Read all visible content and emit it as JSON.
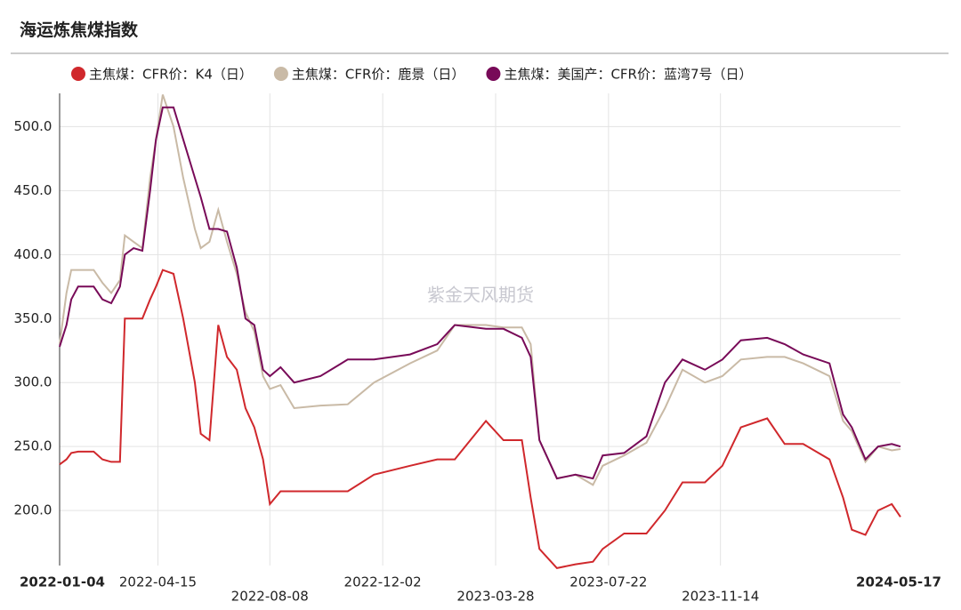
{
  "chart_data": {
    "type": "line",
    "title": "海运炼焦煤指数",
    "watermark": "紫金天风期货",
    "x": [
      "2022-01-04",
      "2022-01-11",
      "2022-01-16",
      "2022-01-23",
      "2022-02-08",
      "2022-02-17",
      "2022-02-26",
      "2022-03-07",
      "2022-03-12",
      "2022-03-21",
      "2022-03-30",
      "2022-04-07",
      "2022-04-13",
      "2022-04-20",
      "2022-05-01",
      "2022-05-11",
      "2022-05-23",
      "2022-05-29",
      "2022-06-07",
      "2022-06-16",
      "2022-06-25",
      "2022-07-05",
      "2022-07-14",
      "2022-07-23",
      "2022-08-01",
      "2022-08-08",
      "2022-08-19",
      "2022-09-02",
      "2022-09-29",
      "2022-10-27",
      "2022-11-23",
      "2022-12-30",
      "2023-01-27",
      "2023-02-14",
      "2023-03-18",
      "2023-04-05",
      "2023-04-24",
      "2023-05-03",
      "2023-05-12",
      "2023-05-30",
      "2023-06-18",
      "2023-07-06",
      "2023-07-16",
      "2023-08-07",
      "2023-08-30",
      "2023-09-18",
      "2023-10-06",
      "2023-10-29",
      "2023-11-16",
      "2023-12-05",
      "2024-01-01",
      "2024-01-19",
      "2024-02-07",
      "2024-03-05",
      "2024-03-19",
      "2024-03-28",
      "2024-04-11",
      "2024-04-24",
      "2024-05-08",
      "2024-05-17"
    ],
    "series": [
      {
        "name": "主焦煤：CFR价：K4（日）",
        "color": "#d0282c",
        "values": [
          236,
          240,
          245,
          246,
          246,
          240,
          238,
          238,
          350,
          350,
          350,
          365,
          375,
          388,
          385,
          350,
          300,
          260,
          255,
          345,
          320,
          310,
          280,
          265,
          240,
          205,
          215,
          215,
          215,
          215,
          228,
          235,
          240,
          240,
          270,
          255,
          255,
          210,
          170,
          155,
          158,
          160,
          170,
          182,
          182,
          200,
          222,
          222,
          235,
          265,
          272,
          252,
          252,
          240,
          210,
          185,
          181,
          200,
          205,
          195
        ]
      },
      {
        "name": "主焦煤：CFR价：鹿景（日）",
        "color": "#c9baa6",
        "values": [
          330,
          370,
          388,
          388,
          388,
          378,
          370,
          380,
          415,
          410,
          405,
          460,
          490,
          525,
          500,
          460,
          420,
          405,
          410,
          435,
          410,
          385,
          355,
          340,
          305,
          295,
          298,
          280,
          282,
          283,
          300,
          315,
          325,
          345,
          345,
          343,
          343,
          330,
          255,
          225,
          228,
          220,
          235,
          243,
          253,
          280,
          310,
          300,
          305,
          318,
          320,
          320,
          315,
          305,
          270,
          262,
          238,
          250,
          247,
          248
        ]
      },
      {
        "name": "主焦煤：美国产：CFR价：蓝湾7号（日）",
        "color": "#780a58",
        "values": [
          328,
          345,
          365,
          375,
          375,
          365,
          362,
          375,
          400,
          405,
          403,
          450,
          490,
          515,
          515,
          490,
          460,
          445,
          420,
          420,
          418,
          390,
          350,
          345,
          310,
          305,
          312,
          300,
          305,
          318,
          318,
          322,
          330,
          345,
          342,
          342,
          335,
          320,
          255,
          225,
          228,
          225,
          243,
          245,
          258,
          300,
          318,
          310,
          318,
          333,
          335,
          330,
          322,
          315,
          275,
          265,
          240,
          250,
          252,
          250
        ]
      }
    ],
    "xlim": [
      "2022-01-04",
      "2024-05-17"
    ],
    "xticks": [
      "2022-01-04",
      "2022-04-15",
      "2022-08-08",
      "2022-12-02",
      "2023-03-28",
      "2023-07-22",
      "2023-11-14",
      "2024-05-17"
    ],
    "ylim": [
      157,
      526
    ],
    "yticks": [
      {
        "value": 200,
        "label": "200.0"
      },
      {
        "value": 250,
        "label": "250.0"
      },
      {
        "value": 300,
        "label": "300.0"
      },
      {
        "value": 350,
        "label": "350.0"
      },
      {
        "value": 400,
        "label": "400.0"
      },
      {
        "value": 450,
        "label": "450.0"
      },
      {
        "value": 500,
        "label": "500.0"
      }
    ],
    "grid": true
  }
}
